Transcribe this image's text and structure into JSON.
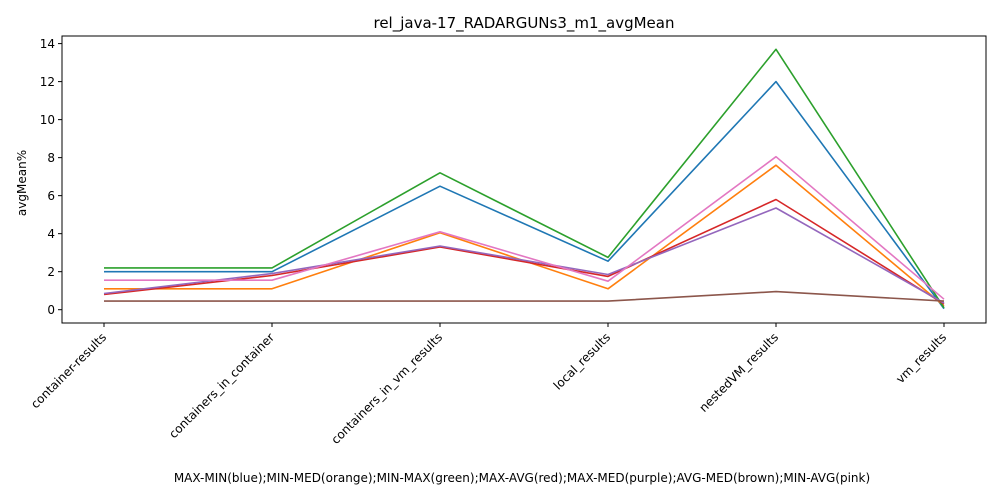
{
  "chart_data": {
    "type": "line",
    "title": "rel_java-17_RADARGUNs3_m1_avgMean",
    "xlabel": "MAX-MIN(blue);MIN-MED(orange);MIN-MAX(green);MAX-AVG(red);MAX-MED(purple);AVG-MED(brown);MIN-AVG(pink)",
    "ylabel": "avgMean%",
    "categories": [
      "container-results",
      "containers_in_container",
      "containers_in_vm_results",
      "local_results",
      "nestedVM_results",
      "vm_results"
    ],
    "ylim": [
      -0.7,
      14.4
    ],
    "yticks": [
      0,
      2,
      4,
      6,
      8,
      10,
      12,
      14
    ],
    "grid": false,
    "series": [
      {
        "color": "#1f77b4",
        "values": [
          2.0,
          2.0,
          6.5,
          2.55,
          12.0,
          0.05
        ]
      },
      {
        "color": "#ff7f0e",
        "values": [
          1.1,
          1.1,
          4.05,
          1.1,
          7.6,
          0.2
        ]
      },
      {
        "color": "#2ca02c",
        "values": [
          2.2,
          2.2,
          7.2,
          2.75,
          13.7,
          0.1
        ]
      },
      {
        "color": "#d62728",
        "values": [
          0.8,
          1.8,
          3.3,
          1.75,
          5.8,
          0.3
        ]
      },
      {
        "color": "#9467bd",
        "values": [
          0.85,
          1.9,
          3.35,
          1.85,
          5.35,
          0.35
        ]
      },
      {
        "color": "#8c564b",
        "values": [
          0.45,
          0.45,
          0.45,
          0.45,
          0.95,
          0.45
        ]
      },
      {
        "color": "#e377c2",
        "values": [
          1.55,
          1.55,
          4.1,
          1.5,
          8.05,
          0.55
        ]
      }
    ]
  }
}
